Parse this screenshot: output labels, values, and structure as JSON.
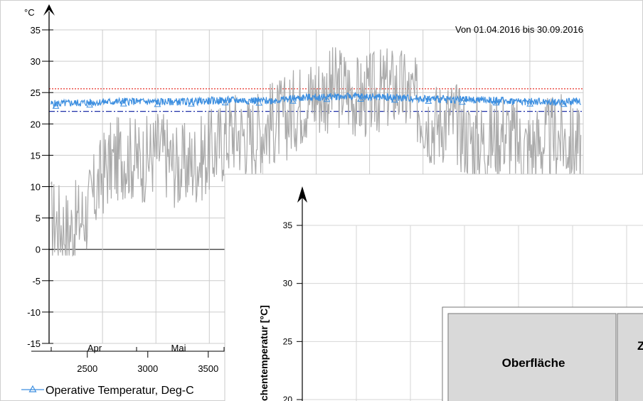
{
  "chart_data": [
    {
      "type": "line",
      "title": "",
      "subtitle": "Von 01.04.2016 bis 30.09.2016",
      "y_unit": "°C",
      "ylim": [
        -15,
        35
      ],
      "y_ticks": [
        "35",
        "30",
        "25",
        "20",
        "15",
        "10",
        "5",
        "0",
        "-5",
        "-10",
        "-15"
      ],
      "x_ticks": [
        "2500",
        "3000",
        "3500"
      ],
      "month_labels": [
        "Apr",
        "Mai"
      ],
      "xlim": [
        2184,
        6600
      ],
      "grid": true,
      "legend_position": "bottom-left",
      "reference_lines": [
        {
          "color": "#e8302a",
          "style": "dotted",
          "value": 25.6
        },
        {
          "color": "#1f2fa8",
          "style": "dash-dot",
          "value": 22.0
        }
      ],
      "series": [
        {
          "name": "Operative Temperatur, Deg-C",
          "color": "#3d8fe0",
          "marker": "triangle",
          "x": [
            2200,
            2500,
            2800,
            3100,
            3400,
            3700,
            4000,
            4300,
            4600,
            4900,
            5200,
            5500,
            5800,
            6100,
            6400,
            6580
          ],
          "y": [
            23.2,
            23.4,
            23.6,
            23.5,
            23.6,
            23.8,
            23.7,
            24.2,
            24.4,
            24.3,
            24.1,
            23.9,
            23.8,
            23.6,
            23.5,
            23.6
          ]
        },
        {
          "name": "",
          "color": "#aaaaaa",
          "x": [
            2200,
            2350,
            2500,
            2650,
            2800,
            2950,
            3100,
            3250,
            3400,
            3550,
            3700,
            3850,
            4000,
            4150,
            4300,
            4450,
            4600,
            4750,
            4900,
            5050,
            5200,
            5350,
            5500,
            5650,
            5800,
            5950,
            6100,
            6250,
            6400,
            6580
          ],
          "y": [
            5,
            3,
            6,
            13,
            15,
            14,
            16,
            13,
            14,
            16,
            19,
            18,
            20,
            21,
            24,
            25,
            26,
            24,
            25,
            26,
            24,
            20,
            21,
            18,
            17,
            19,
            16,
            17,
            18,
            16
          ]
        }
      ]
    },
    {
      "type": "scatter",
      "title": "",
      "ylabel": "chentemperatur  [°C]",
      "ylim": [
        20,
        35
      ],
      "y_ticks": [
        "35",
        "30",
        "25",
        "20"
      ],
      "grid": true
    }
  ],
  "table": {
    "header": "Oberfläche",
    "header_cut": "Z"
  }
}
